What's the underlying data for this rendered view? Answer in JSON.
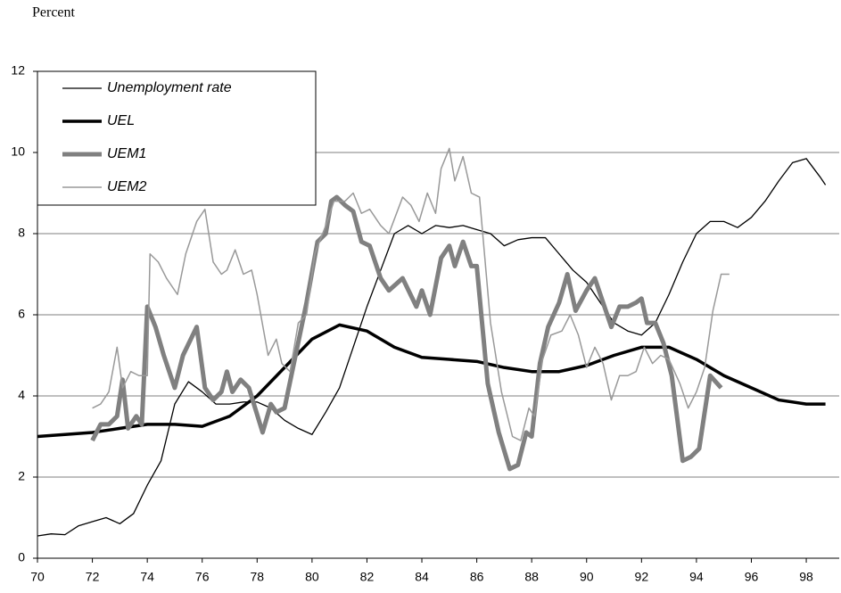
{
  "chart_data": {
    "type": "line",
    "ylabel": "Percent",
    "xlim": [
      70,
      99.2
    ],
    "xticks": [
      70,
      72,
      74,
      76,
      78,
      80,
      82,
      84,
      86,
      88,
      90,
      92,
      94,
      96,
      98
    ],
    "ylim": [
      0,
      12
    ],
    "yticks": [
      0,
      2,
      4,
      6,
      8,
      10,
      12
    ],
    "grid": true,
    "legend": "upper left",
    "series": [
      {
        "name": "Unemployment rate",
        "color": "#000000",
        "width": 1.3,
        "x": [
          70,
          70.5,
          71,
          71.5,
          72,
          72.5,
          73,
          73.5,
          74,
          74.5,
          75,
          75.5,
          76,
          76.5,
          77,
          77.5,
          78,
          78.5,
          79,
          79.5,
          80,
          80.5,
          81,
          81.5,
          82,
          82.5,
          83,
          83.5,
          84,
          84.5,
          85,
          85.5,
          86,
          86.5,
          87,
          87.5,
          88,
          88.5,
          89,
          89.5,
          90,
          90.5,
          91,
          91.5,
          92,
          92.5,
          93,
          93.5,
          94,
          94.5,
          95,
          95.5,
          96,
          96.5,
          97,
          97.5,
          98,
          98.5,
          98.7
        ],
        "values": [
          0.55,
          0.6,
          0.58,
          0.8,
          0.9,
          1.0,
          0.85,
          1.1,
          1.8,
          2.4,
          3.8,
          4.35,
          4.1,
          3.8,
          3.8,
          3.85,
          3.85,
          3.7,
          3.4,
          3.2,
          3.05,
          3.6,
          4.2,
          5.2,
          6.2,
          7.1,
          8.0,
          8.2,
          8.0,
          8.2,
          8.15,
          8.2,
          8.1,
          8.0,
          7.7,
          7.85,
          7.9,
          7.9,
          7.5,
          7.1,
          6.8,
          6.3,
          5.8,
          5.6,
          5.5,
          5.8,
          6.5,
          7.3,
          8.0,
          8.3,
          8.3,
          8.15,
          8.4,
          8.8,
          9.3,
          9.75,
          9.85,
          9.4,
          9.2
        ]
      },
      {
        "name": "UEL",
        "color": "#000000",
        "width": 3.5,
        "x": [
          70,
          71,
          72,
          73,
          74,
          75,
          76,
          77,
          78,
          79,
          80,
          81,
          82,
          83,
          84,
          85,
          86,
          87,
          88,
          89,
          90,
          91,
          92,
          93,
          94,
          95,
          96,
          97,
          98,
          98.7
        ],
        "values": [
          3.0,
          3.05,
          3.1,
          3.2,
          3.3,
          3.3,
          3.25,
          3.5,
          4.0,
          4.7,
          5.4,
          5.75,
          5.6,
          5.2,
          4.95,
          4.9,
          4.85,
          4.7,
          4.6,
          4.6,
          4.75,
          5.0,
          5.2,
          5.2,
          4.9,
          4.5,
          4.2,
          3.9,
          3.8,
          3.8
        ]
      },
      {
        "name": "UEM1",
        "color": "#808080",
        "width": 5,
        "x": [
          72,
          72.3,
          72.6,
          72.9,
          73.1,
          73.3,
          73.6,
          73.8,
          74.0,
          74.3,
          74.6,
          75.0,
          75.3,
          75.8,
          76.1,
          76.4,
          76.7,
          76.9,
          77.1,
          77.4,
          77.7,
          78.2,
          78.5,
          78.7,
          79.0,
          79.4,
          79.8,
          80.2,
          80.5,
          80.7,
          80.9,
          81.2,
          81.5,
          81.8,
          82.1,
          82.5,
          82.8,
          83.3,
          83.8,
          84.0,
          84.3,
          84.7,
          85.0,
          85.2,
          85.5,
          85.8,
          86.0,
          86.4,
          86.8,
          87.2,
          87.5,
          87.8,
          88.0,
          88.3,
          88.6,
          89.0,
          89.3,
          89.6,
          90.0,
          90.3,
          90.6,
          90.9,
          91.2,
          91.5,
          91.8,
          92.0,
          92.2,
          92.5,
          92.8,
          93.1,
          93.5,
          93.8,
          94.1,
          94.5,
          94.9
        ],
        "values": [
          2.9,
          3.3,
          3.3,
          3.5,
          4.4,
          3.2,
          3.5,
          3.3,
          6.2,
          5.7,
          5.0,
          4.2,
          5.0,
          5.7,
          4.2,
          3.9,
          4.1,
          4.6,
          4.1,
          4.4,
          4.2,
          3.1,
          3.8,
          3.6,
          3.7,
          5.0,
          6.3,
          7.8,
          8.0,
          8.8,
          8.9,
          8.7,
          8.55,
          7.8,
          7.7,
          6.9,
          6.6,
          6.9,
          6.2,
          6.6,
          6.0,
          7.4,
          7.7,
          7.2,
          7.8,
          7.2,
          7.2,
          4.3,
          3.1,
          2.2,
          2.3,
          3.1,
          3.0,
          4.8,
          5.7,
          6.3,
          7.0,
          6.1,
          6.6,
          6.9,
          6.3,
          5.7,
          6.2,
          6.2,
          6.3,
          6.4,
          5.8,
          5.8,
          5.3,
          4.5,
          2.4,
          2.5,
          2.7,
          4.5,
          4.2
        ]
      },
      {
        "name": "UEM2",
        "color": "#999999",
        "width": 1.5,
        "x": [
          72,
          72.3,
          72.6,
          72.9,
          73.1,
          73.4,
          73.7,
          74.0,
          74.1,
          74.4,
          74.7,
          75.1,
          75.4,
          75.8,
          76.1,
          76.4,
          76.7,
          76.9,
          77.2,
          77.5,
          77.8,
          78.0,
          78.4,
          78.7,
          78.9,
          79.2,
          79.5,
          79.8,
          80.1,
          80.5,
          80.8,
          81.2,
          81.5,
          81.8,
          82.1,
          82.5,
          82.8,
          83.3,
          83.6,
          83.9,
          84.2,
          84.5,
          84.7,
          85.0,
          85.2,
          85.5,
          85.8,
          86.1,
          86.5,
          86.9,
          87.3,
          87.6,
          87.9,
          88.1,
          88.4,
          88.7,
          89.1,
          89.4,
          89.7,
          90.0,
          90.3,
          90.6,
          90.9,
          91.2,
          91.5,
          91.8,
          92.1,
          92.4,
          92.7,
          93.0,
          93.4,
          93.7,
          94.0,
          94.3,
          94.6,
          94.9,
          95.2
        ],
        "values": [
          3.7,
          3.8,
          4.1,
          5.2,
          4.2,
          4.6,
          4.5,
          4.5,
          7.5,
          7.3,
          6.9,
          6.5,
          7.5,
          8.3,
          8.6,
          7.3,
          7.0,
          7.1,
          7.6,
          7.0,
          7.1,
          6.5,
          5.0,
          5.4,
          4.8,
          4.6,
          5.8,
          6.0,
          7.5,
          8.2,
          8.8,
          8.8,
          9.0,
          8.5,
          8.6,
          8.2,
          8.0,
          8.9,
          8.7,
          8.3,
          9.0,
          8.5,
          9.6,
          10.1,
          9.3,
          9.9,
          9.0,
          8.9,
          5.8,
          4.1,
          3.0,
          2.9,
          3.7,
          3.5,
          4.9,
          5.5,
          5.6,
          6.0,
          5.5,
          4.7,
          5.2,
          4.8,
          3.9,
          4.5,
          4.5,
          4.6,
          5.2,
          4.8,
          5.0,
          4.9,
          4.3,
          3.7,
          4.1,
          4.7,
          6.1,
          7.0,
          7.0
        ]
      }
    ]
  }
}
